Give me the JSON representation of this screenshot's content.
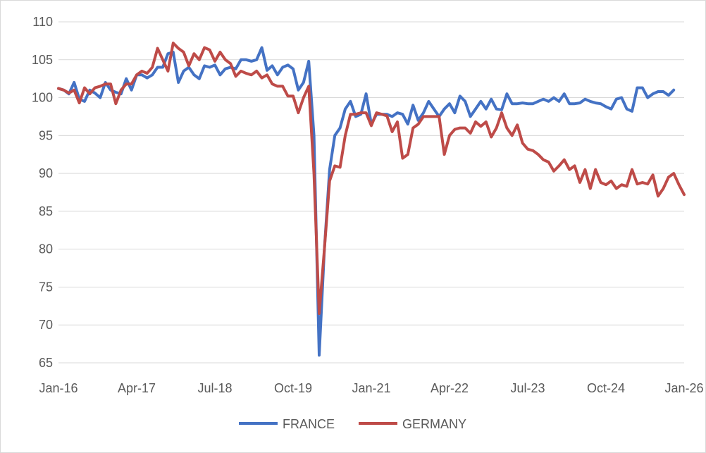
{
  "chart_data": {
    "type": "line",
    "title": "",
    "xlabel": "",
    "ylabel": "",
    "ylim": [
      65,
      110
    ],
    "yticks": [
      "65",
      "70",
      "75",
      "80",
      "85",
      "90",
      "95",
      "100",
      "105",
      "110"
    ],
    "xticks": [
      "Jan-16",
      "Apr-17",
      "Jul-18",
      "Oct-19",
      "Jan-21",
      "Apr-22",
      "Jul-23",
      "Oct-24",
      "Jan-26"
    ],
    "x_range": [
      "2016-01",
      "2026-01"
    ],
    "grid": true,
    "legend_position": "bottom",
    "frequency": "monthly",
    "series": [
      {
        "name": "FRANCE",
        "color": "#4472C4",
        "start": "2016-01",
        "values": [
          101.2,
          101.0,
          100.5,
          102.0,
          99.8,
          99.5,
          101.0,
          100.6,
          100.0,
          102.0,
          101.0,
          100.7,
          100.5,
          102.5,
          101.0,
          103.0,
          103.0,
          102.6,
          103.0,
          104.0,
          104.0,
          105.8,
          106.0,
          102.0,
          103.5,
          104.0,
          103.0,
          102.5,
          104.2,
          104.0,
          104.3,
          103.0,
          103.8,
          104.0,
          103.8,
          105.0,
          105.0,
          104.8,
          105.0,
          106.6,
          103.6,
          104.2,
          103.0,
          104.0,
          104.3,
          103.8,
          101.0,
          102.0,
          104.8,
          95.0,
          66.0,
          80.0,
          90.5,
          95.0,
          96.0,
          98.5,
          99.5,
          97.5,
          97.8,
          100.5,
          96.5,
          97.8,
          97.8,
          97.8,
          97.5,
          98.0,
          97.8,
          96.5,
          99.0,
          97.0,
          98.0,
          99.5,
          98.5,
          97.5,
          98.5,
          99.2,
          98.0,
          100.2,
          99.5,
          97.5,
          98.5,
          99.5,
          98.5,
          99.8,
          98.5,
          98.4,
          100.5,
          99.2,
          99.2,
          99.3,
          99.2,
          99.2,
          99.5,
          99.8,
          99.5,
          100.0,
          99.5,
          100.5,
          99.2,
          99.2,
          99.3,
          99.8,
          99.5,
          99.3,
          99.2,
          98.8,
          98.5,
          99.8,
          100.0,
          98.5,
          98.2,
          101.3,
          101.3,
          100.0,
          100.5,
          100.8,
          100.8,
          100.3,
          101.0
        ]
      },
      {
        "name": "GERMANY",
        "color": "#BE4B48",
        "start": "2016-01",
        "values": [
          101.2,
          101.0,
          100.6,
          101.0,
          99.3,
          101.3,
          100.5,
          101.3,
          101.5,
          101.8,
          101.8,
          99.2,
          101.0,
          101.8,
          101.8,
          103.0,
          103.5,
          103.2,
          104.0,
          106.5,
          105.0,
          103.5,
          107.2,
          106.5,
          106.0,
          104.2,
          105.8,
          105.0,
          106.6,
          106.3,
          104.8,
          106.0,
          105.0,
          104.5,
          102.8,
          103.5,
          103.2,
          103.0,
          103.5,
          102.6,
          103.0,
          101.8,
          101.5,
          101.5,
          100.2,
          100.2,
          98.0,
          100.0,
          101.5,
          90.0,
          71.5,
          80.0,
          89.0,
          91.0,
          90.8,
          95.0,
          97.8,
          97.8,
          98.0,
          98.0,
          96.3,
          98.0,
          97.8,
          97.6,
          95.5,
          96.8,
          92.0,
          92.5,
          96.0,
          96.5,
          97.5,
          97.5,
          97.5,
          97.5,
          92.5,
          95.0,
          95.8,
          96.0,
          96.0,
          95.3,
          96.8,
          96.2,
          96.8,
          94.8,
          96.0,
          98.0,
          96.0,
          95.0,
          96.4,
          94.0,
          93.2,
          93.0,
          92.5,
          91.8,
          91.5,
          90.3,
          91.0,
          91.8,
          90.5,
          91.0,
          88.8,
          90.5,
          88.0,
          90.5,
          88.8,
          88.5,
          89.0,
          88.0,
          88.5,
          88.3,
          90.5,
          88.6,
          88.8,
          88.6,
          89.8,
          87.0,
          88.0,
          89.5,
          90.0,
          88.5,
          87.2
        ]
      }
    ]
  }
}
